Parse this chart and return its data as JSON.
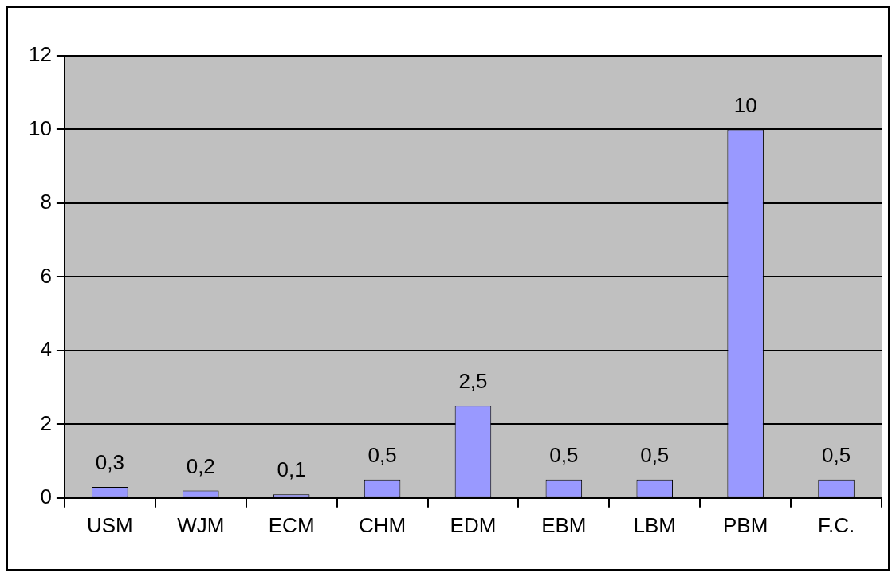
{
  "chart_data": {
    "type": "bar",
    "categories": [
      "USM",
      "WJM",
      "ECM",
      "CHM",
      "EDM",
      "EBM",
      "LBM",
      "PBM",
      "F.C."
    ],
    "values": [
      0.3,
      0.2,
      0.1,
      0.5,
      2.5,
      0.5,
      0.5,
      10,
      0.5
    ],
    "value_labels": [
      "0,3",
      "0,2",
      "0,1",
      "0,5",
      "2,5",
      "0,5",
      "0,5",
      "10",
      "0,5"
    ],
    "color": "#9999ff",
    "ylim": [
      0,
      12
    ],
    "yticks": [
      0,
      2,
      4,
      6,
      8,
      10,
      12
    ],
    "grid": "y",
    "legend": false
  }
}
